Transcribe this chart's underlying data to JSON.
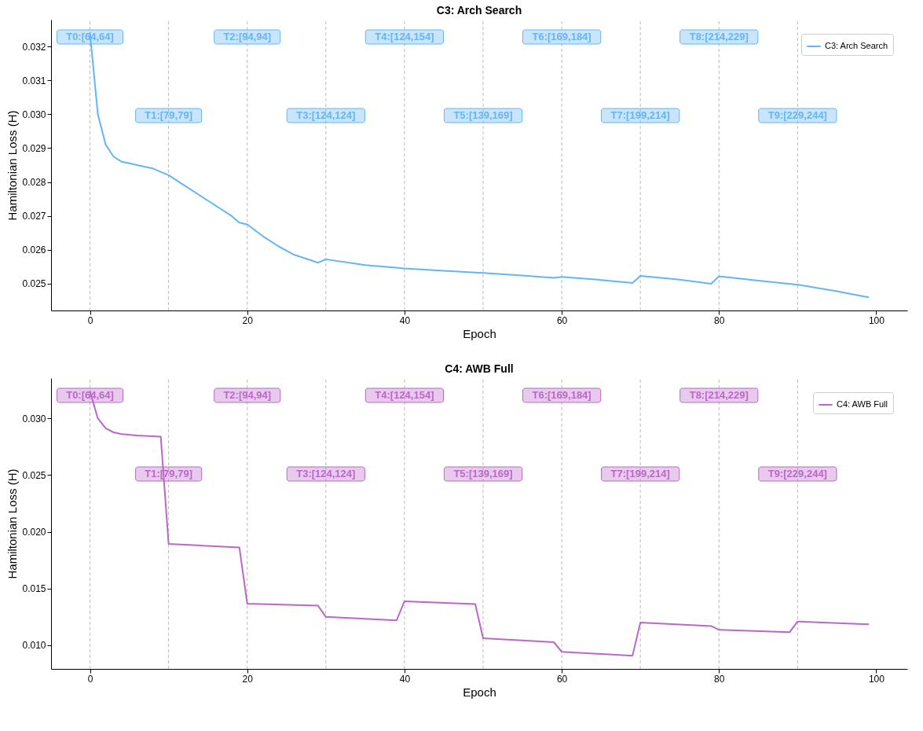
{
  "chart_data": [
    {
      "type": "line",
      "title": "C3: Arch Search",
      "xlabel": "Epoch",
      "ylabel": "Hamiltonian Loss (H)",
      "xlim": [
        -4.95,
        103.95
      ],
      "xticks": [
        0,
        20,
        40,
        60,
        80,
        100
      ],
      "ylim": [
        0.02421,
        0.03279
      ],
      "yticks": [
        0.025,
        0.026,
        0.027,
        0.028,
        0.029,
        {
          "value": 0.03,
          "label": "0.030"
        },
        0.031,
        0.032
      ],
      "grid": false,
      "legend": "top right",
      "line_style": "solid",
      "marker": "none",
      "series": [
        {
          "name": "C3: Arch Search",
          "color": "#64b5f6",
          "x": [
            0,
            1,
            2,
            3,
            4,
            5,
            6,
            7,
            8,
            9,
            10,
            12,
            15,
            18,
            19,
            20,
            22,
            24,
            26,
            28,
            29,
            30,
            35,
            40,
            45,
            50,
            55,
            59,
            60,
            65,
            69,
            70,
            75,
            79,
            80,
            85,
            90,
            95,
            99
          ],
          "values": [
            0.0324,
            0.03,
            0.0291,
            0.02875,
            0.0286,
            0.02855,
            0.0285,
            0.02845,
            0.0284,
            0.0283,
            0.0282,
            0.0279,
            0.02745,
            0.027,
            0.0268,
            0.02675,
            0.0264,
            0.0261,
            0.02585,
            0.0257,
            0.02562,
            0.02572,
            0.02555,
            0.02545,
            0.02538,
            0.02532,
            0.02524,
            0.02517,
            0.0252,
            0.02511,
            0.02502,
            0.02523,
            0.02512,
            0.025,
            0.02522,
            0.02509,
            0.02497,
            0.02478,
            0.0246
          ]
        }
      ],
      "ref_lines": [
        {
          "axis": "x",
          "value": 0,
          "color": "#bbbbbb",
          "line_style": "dashed"
        },
        {
          "axis": "x",
          "value": 10,
          "color": "#bbbbbb",
          "line_style": "dashed"
        },
        {
          "axis": "x",
          "value": 20,
          "color": "#bbbbbb",
          "line_style": "dashed"
        },
        {
          "axis": "x",
          "value": 30,
          "color": "#bbbbbb",
          "line_style": "dashed"
        },
        {
          "axis": "x",
          "value": 40,
          "color": "#bbbbbb",
          "line_style": "dashed"
        },
        {
          "axis": "x",
          "value": 50,
          "color": "#bbbbbb",
          "line_style": "dashed"
        },
        {
          "axis": "x",
          "value": 60,
          "color": "#bbbbbb",
          "line_style": "dashed"
        },
        {
          "axis": "x",
          "value": 70,
          "color": "#bbbbbb",
          "line_style": "dashed"
        },
        {
          "axis": "x",
          "value": 80,
          "color": "#bbbbbb",
          "line_style": "dashed"
        },
        {
          "axis": "x",
          "value": 90,
          "color": "#bbbbbb",
          "line_style": "dashed"
        }
      ],
      "annotations": [
        "T0:[64,64]",
        "T1:[79,79]",
        "T2:[94,94]",
        "T3:[124,124]",
        "T4:[124,154]",
        "T5:[139,169]",
        "T6:[169,184]",
        "T7:[199,214]",
        "T8:[214,229]",
        "T9:[229,244]"
      ]
    },
    {
      "type": "line",
      "title": "C4: AWB Full",
      "xlabel": "Epoch",
      "ylabel": "Hamiltonian Loss (H)",
      "xlim": [
        -4.95,
        103.95
      ],
      "xticks": [
        0,
        20,
        40,
        60,
        80,
        100
      ],
      "ylim": [
        0.00789,
        0.03357
      ],
      "yticks": [
        {
          "value": 0.01,
          "label": "0.010"
        },
        0.015,
        {
          "value": 0.02,
          "label": "0.020"
        },
        0.025,
        {
          "value": 0.03,
          "label": "0.030"
        }
      ],
      "grid": false,
      "legend": "top right",
      "line_style": "solid",
      "marker": "none",
      "series": [
        {
          "name": "C4: AWB Full",
          "color": "#ba68c8",
          "x": [
            0,
            1,
            2,
            3,
            4,
            6,
            9,
            10,
            19,
            20,
            29,
            30,
            39,
            40,
            49,
            50,
            59,
            60,
            69,
            70,
            79,
            80,
            89,
            90,
            99
          ],
          "values": [
            0.0324,
            0.03,
            0.02913,
            0.02878,
            0.02862,
            0.0285,
            0.0284,
            0.01893,
            0.01862,
            0.01365,
            0.01347,
            0.01248,
            0.01218,
            0.01386,
            0.01361,
            0.01059,
            0.01025,
            0.0094,
            0.00906,
            0.01198,
            0.01168,
            0.01134,
            0.01114,
            0.01208,
            0.01183
          ]
        }
      ],
      "ref_lines": [
        {
          "axis": "x",
          "value": 0,
          "color": "#bbbbbb",
          "line_style": "dashed"
        },
        {
          "axis": "x",
          "value": 10,
          "color": "#bbbbbb",
          "line_style": "dashed"
        },
        {
          "axis": "x",
          "value": 20,
          "color": "#bbbbbb",
          "line_style": "dashed"
        },
        {
          "axis": "x",
          "value": 30,
          "color": "#bbbbbb",
          "line_style": "dashed"
        },
        {
          "axis": "x",
          "value": 40,
          "color": "#bbbbbb",
          "line_style": "dashed"
        },
        {
          "axis": "x",
          "value": 50,
          "color": "#bbbbbb",
          "line_style": "dashed"
        },
        {
          "axis": "x",
          "value": 60,
          "color": "#bbbbbb",
          "line_style": "dashed"
        },
        {
          "axis": "x",
          "value": 70,
          "color": "#bbbbbb",
          "line_style": "dashed"
        },
        {
          "axis": "x",
          "value": 80,
          "color": "#bbbbbb",
          "line_style": "dashed"
        },
        {
          "axis": "x",
          "value": 90,
          "color": "#bbbbbb",
          "line_style": "dashed"
        }
      ],
      "annotations": [
        "T0:[64,64]",
        "T1:[79,79]",
        "T2:[94,94]",
        "T3:[124,124]",
        "T4:[124,154]",
        "T5:[139,169]",
        "T6:[169,184]",
        "T7:[199,214]",
        "T8:[214,229]",
        "T9:[229,244]"
      ]
    }
  ]
}
